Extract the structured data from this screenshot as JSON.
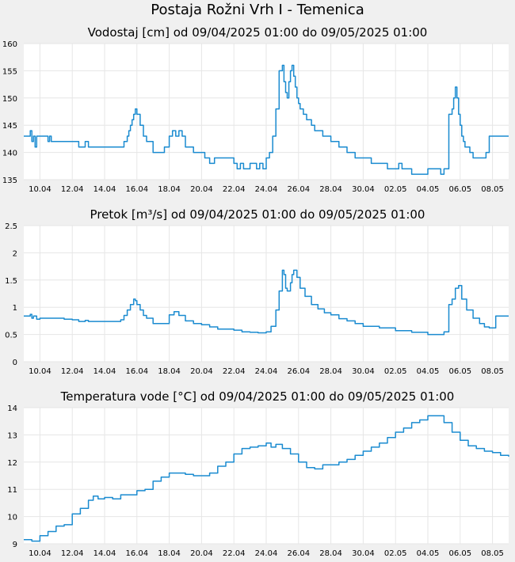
{
  "page": {
    "title": "Postaja Rožni Vrh I - Temenica"
  },
  "colors": {
    "line": "#1a8bd0",
    "plot_bg": "#ffffff",
    "page_bg": "#f0f0f0",
    "grid": "#e6e6e6"
  },
  "chart_data": [
    {
      "type": "line",
      "title": "Vodostaj [cm] od 09/04/2025 01:00 do 09/05/2025 01:00",
      "x_range": [
        "2025-04-09",
        "2025-05-09"
      ],
      "ylim": [
        135,
        160
      ],
      "yticks": [
        135,
        140,
        145,
        150,
        155,
        160
      ],
      "ytick_labels": [
        "135",
        "140",
        "145",
        "150",
        "155",
        "160"
      ],
      "xtick_labels": [
        "10.04",
        "12.04",
        "14.04",
        "16.04",
        "18.04",
        "20.04",
        "22.04",
        "24.04",
        "26.04",
        "28.04",
        "30.04",
        "02.05",
        "04.05",
        "06.05",
        "08.05"
      ],
      "xtick_days": [
        1,
        3,
        5,
        7,
        9,
        11,
        13,
        15,
        17,
        19,
        21,
        23,
        25,
        27,
        29
      ],
      "grid": true,
      "series": [
        {
          "x_days": [
            0,
            0.3,
            0.4,
            0.5,
            0.6,
            0.7,
            0.8,
            1.0,
            1.5,
            1.6,
            1.7,
            2.0,
            2.5,
            3.0,
            3.4,
            3.6,
            3.8,
            4.0,
            4.5,
            5.0,
            5.5,
            5.8,
            6.0,
            6.1,
            6.2,
            6.3,
            6.4,
            6.5,
            6.6,
            6.7,
            6.8,
            6.9,
            7.0,
            7.2,
            7.4,
            7.6,
            8.0,
            8.3,
            8.5,
            8.7,
            9.0,
            9.2,
            9.4,
            9.6,
            9.8,
            10.0,
            10.5,
            11.0,
            11.2,
            11.5,
            11.8,
            12.2,
            12.5,
            13.0,
            13.2,
            13.4,
            13.6,
            14.0,
            14.4,
            14.6,
            14.8,
            15.0,
            15.2,
            15.4,
            15.6,
            15.8,
            16.0,
            16.1,
            16.2,
            16.3,
            16.4,
            16.5,
            16.6,
            16.7,
            16.8,
            16.9,
            17.0,
            17.1,
            17.2,
            17.3,
            17.5,
            17.8,
            18.0,
            18.2,
            18.5,
            19.0,
            19.5,
            20.0,
            20.3,
            20.5,
            21.0,
            21.5,
            22.0,
            22.5,
            23.0,
            23.2,
            23.4,
            23.5,
            24.0,
            24.5,
            25.0,
            25.5,
            25.8,
            26.0,
            26.3,
            26.5,
            26.6,
            26.7,
            26.8,
            26.9,
            27.0,
            27.1,
            27.2,
            27.3,
            27.4,
            27.6,
            27.8,
            28.0,
            28.3,
            28.6,
            28.8,
            29.0,
            29.2,
            29.5,
            30.0
          ],
          "values": [
            143,
            143,
            144,
            142,
            143,
            141,
            143,
            143,
            142,
            143,
            142,
            142,
            142,
            142,
            141,
            141,
            142,
            141,
            141,
            141,
            141,
            141,
            141,
            141,
            142,
            142,
            143,
            144,
            145,
            146,
            147,
            148,
            147,
            145,
            143,
            142,
            140,
            140,
            140,
            141,
            143,
            144,
            143,
            144,
            143,
            141,
            140,
            140,
            139,
            138,
            139,
            139,
            139,
            138,
            137,
            138,
            137,
            138,
            137,
            138,
            137,
            139,
            140,
            143,
            148,
            155,
            156,
            153,
            151,
            150,
            153,
            155,
            156,
            154,
            152,
            150,
            149,
            148,
            148,
            147,
            146,
            145,
            144,
            144,
            143,
            142,
            141,
            140,
            140,
            139,
            139,
            138,
            138,
            137,
            137,
            138,
            137,
            137,
            136,
            136,
            137,
            137,
            136,
            137,
            147,
            148,
            150,
            152,
            150,
            147,
            145,
            143,
            142,
            141,
            141,
            140,
            139,
            139,
            139,
            140,
            143,
            143,
            143,
            143,
            143
          ]
        }
      ]
    },
    {
      "type": "line",
      "title": "Pretok [m³/s] od 09/04/2025 01:00 do 09/05/2025 01:00",
      "x_range": [
        "2025-04-09",
        "2025-05-09"
      ],
      "ylim": [
        0,
        2.5
      ],
      "yticks": [
        0,
        0.5,
        1,
        1.5,
        2,
        2.5
      ],
      "ytick_labels": [
        "0",
        "0.5",
        "1",
        "1.5",
        "2",
        "2.5"
      ],
      "xtick_labels": [
        "10.04",
        "12.04",
        "14.04",
        "16.04",
        "18.04",
        "20.04",
        "22.04",
        "24.04",
        "26.04",
        "28.04",
        "30.04",
        "02.05",
        "04.05",
        "06.05",
        "08.05"
      ],
      "xtick_days": [
        1,
        3,
        5,
        7,
        9,
        11,
        13,
        15,
        17,
        19,
        21,
        23,
        25,
        27,
        29
      ],
      "grid": true,
      "series": [
        {
          "x_days": [
            0,
            0.3,
            0.4,
            0.5,
            0.6,
            0.8,
            1.0,
            1.5,
            2.0,
            2.5,
            3.0,
            3.4,
            3.6,
            3.8,
            4.0,
            5.0,
            5.8,
            6.0,
            6.2,
            6.4,
            6.6,
            6.8,
            6.9,
            7.0,
            7.2,
            7.4,
            7.6,
            8.0,
            8.5,
            9.0,
            9.3,
            9.6,
            10.0,
            10.5,
            11.0,
            11.5,
            12.0,
            12.5,
            13.0,
            13.5,
            14.0,
            14.5,
            15.0,
            15.3,
            15.6,
            15.8,
            16.0,
            16.1,
            16.2,
            16.3,
            16.5,
            16.6,
            16.7,
            16.9,
            17.1,
            17.4,
            17.8,
            18.2,
            18.6,
            19.0,
            19.5,
            20.0,
            20.5,
            21.0,
            22.0,
            23.0,
            24.0,
            25.0,
            25.5,
            25.8,
            26.0,
            26.3,
            26.5,
            26.7,
            26.9,
            27.1,
            27.4,
            27.8,
            28.2,
            28.5,
            28.8,
            29.0,
            29.2,
            30.0
          ],
          "values": [
            0.84,
            0.84,
            0.87,
            0.8,
            0.84,
            0.78,
            0.8,
            0.8,
            0.8,
            0.78,
            0.77,
            0.74,
            0.74,
            0.76,
            0.74,
            0.74,
            0.74,
            0.77,
            0.85,
            0.95,
            1.05,
            1.15,
            1.12,
            1.05,
            0.95,
            0.85,
            0.8,
            0.7,
            0.7,
            0.86,
            0.92,
            0.85,
            0.75,
            0.7,
            0.68,
            0.64,
            0.6,
            0.6,
            0.58,
            0.55,
            0.54,
            0.53,
            0.55,
            0.65,
            0.95,
            1.3,
            1.68,
            1.6,
            1.35,
            1.3,
            1.45,
            1.6,
            1.68,
            1.55,
            1.35,
            1.2,
            1.05,
            0.97,
            0.9,
            0.86,
            0.79,
            0.75,
            0.7,
            0.65,
            0.62,
            0.57,
            0.54,
            0.5,
            0.5,
            0.5,
            0.55,
            1.05,
            1.15,
            1.35,
            1.4,
            1.15,
            0.95,
            0.8,
            0.7,
            0.64,
            0.62,
            0.62,
            0.84,
            0.84
          ]
        }
      ]
    },
    {
      "type": "line",
      "title": "Temperatura vode [°C] od 09/04/2025 01:00 do 09/05/2025 01:00",
      "x_range": [
        "2025-04-09",
        "2025-05-09"
      ],
      "ylim": [
        9,
        14
      ],
      "yticks": [
        9,
        10,
        11,
        12,
        13,
        14
      ],
      "ytick_labels": [
        "9",
        "10",
        "11",
        "12",
        "13",
        "14"
      ],
      "xtick_labels": [
        "10.04",
        "12.04",
        "14.04",
        "16.04",
        "18.04",
        "20.04",
        "22.04",
        "24.04",
        "26.04",
        "28.04",
        "30.04",
        "02.05",
        "04.05",
        "06.05",
        "08.05"
      ],
      "xtick_days": [
        1,
        3,
        5,
        7,
        9,
        11,
        13,
        15,
        17,
        19,
        21,
        23,
        25,
        27,
        29
      ],
      "grid": true,
      "series": [
        {
          "x_days": [
            0,
            0.5,
            1.0,
            1.5,
            2.0,
            2.5,
            3.0,
            3.5,
            4.0,
            4.3,
            4.6,
            5.0,
            5.5,
            6.0,
            6.5,
            7.0,
            7.5,
            8.0,
            8.5,
            9.0,
            9.5,
            10.0,
            10.5,
            11.0,
            11.5,
            12.0,
            12.5,
            13.0,
            13.5,
            14.0,
            14.5,
            15.0,
            15.3,
            15.6,
            16.0,
            16.5,
            17.0,
            17.5,
            18.0,
            18.5,
            19.0,
            19.5,
            20.0,
            20.5,
            21.0,
            21.5,
            22.0,
            22.5,
            23.0,
            23.5,
            24.0,
            24.5,
            25.0,
            25.5,
            26.0,
            26.5,
            27.0,
            27.5,
            28.0,
            28.5,
            29.0,
            29.5,
            30.0
          ],
          "values": [
            9.15,
            9.1,
            9.3,
            9.45,
            9.65,
            9.7,
            10.1,
            10.3,
            10.6,
            10.75,
            10.65,
            10.7,
            10.65,
            10.8,
            10.8,
            10.95,
            11.0,
            11.3,
            11.45,
            11.6,
            11.6,
            11.55,
            11.5,
            11.5,
            11.6,
            11.85,
            12.0,
            12.3,
            12.5,
            12.55,
            12.6,
            12.7,
            12.55,
            12.65,
            12.5,
            12.3,
            12.0,
            11.8,
            11.75,
            11.9,
            11.9,
            12.0,
            12.1,
            12.25,
            12.4,
            12.55,
            12.7,
            12.9,
            13.1,
            13.25,
            13.45,
            13.55,
            13.7,
            13.7,
            13.45,
            13.1,
            12.8,
            12.6,
            12.5,
            12.4,
            12.35,
            12.25,
            12.2
          ]
        }
      ]
    }
  ]
}
